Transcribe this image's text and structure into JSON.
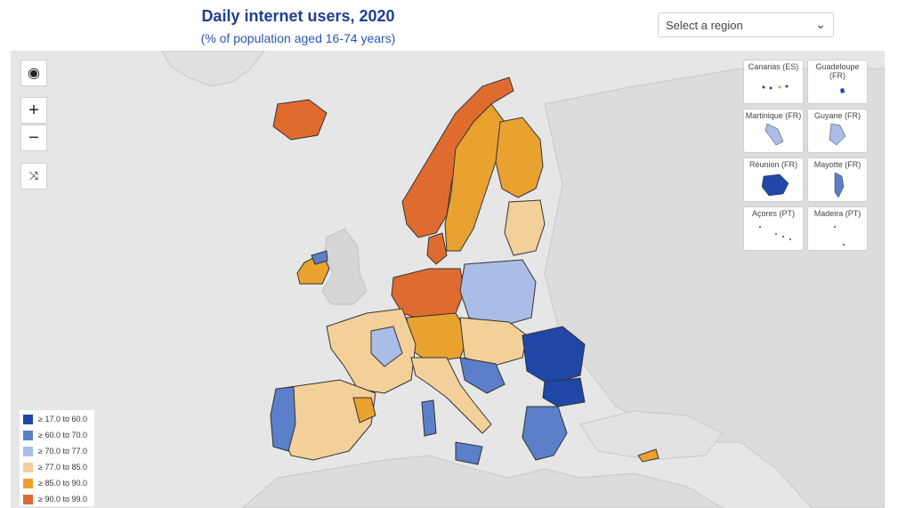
{
  "header": {
    "title": "Daily internet users, 2020",
    "subtitle": "(% of population aged 16-74 years)"
  },
  "region_select": {
    "placeholder": "Select a region",
    "icon": "chevron-down-icon"
  },
  "controls": {
    "globe_icon": "globe-icon",
    "zoom_in": "+",
    "zoom_out": "−",
    "fullscreen_icon": "collapse-icon"
  },
  "insets": [
    {
      "label": "Canarias (ES)"
    },
    {
      "label": "Guadeloupe (FR)"
    },
    {
      "label": "Martinique (FR)"
    },
    {
      "label": "Guyane (FR)"
    },
    {
      "label": "Réunion (FR)"
    },
    {
      "label": "Mayotte (FR)"
    },
    {
      "label": "Açores (PT)"
    },
    {
      "label": "Madeira (PT)"
    }
  ],
  "legend": [
    {
      "label": "≥ 17.0 to 60.0",
      "color": "#1e47a8"
    },
    {
      "label": "≥ 60.0 to 70.0",
      "color": "#5b7fc9"
    },
    {
      "label": "≥ 70.0 to 77.0",
      "color": "#a9bde6"
    },
    {
      "label": "≥ 77.0 to 85.0",
      "color": "#f3cf9a"
    },
    {
      "label": "≥ 85.0 to 90.0",
      "color": "#e9a230"
    },
    {
      "label": "≥ 90.0 to 99.0",
      "color": "#df6b2f"
    }
  ]
}
